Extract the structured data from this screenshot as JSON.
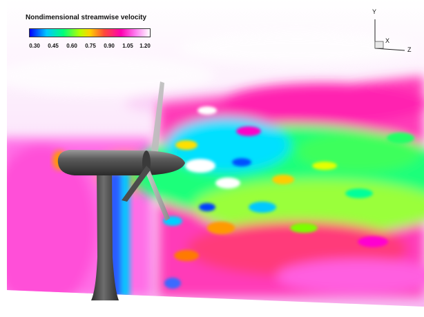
{
  "legend": {
    "title": "Nondimensional streamwise velocity",
    "ticks": [
      "0.30",
      "0.45",
      "0.60",
      "0.75",
      "0.90",
      "1.05",
      "1.20"
    ]
  },
  "axes": {
    "y_label": "Y",
    "x_label": "X",
    "z_label": "Z"
  },
  "colors": {
    "low": "#0000ff",
    "cyan": "#00d0ff",
    "green": "#22ff66",
    "yellow": "#e6ff00",
    "orange": "#ffb000",
    "red": "#ff3a5a",
    "magenta": "#ff00c8",
    "pink": "#ff8cf0",
    "high": "#ffffff",
    "turbine": "#505050"
  }
}
